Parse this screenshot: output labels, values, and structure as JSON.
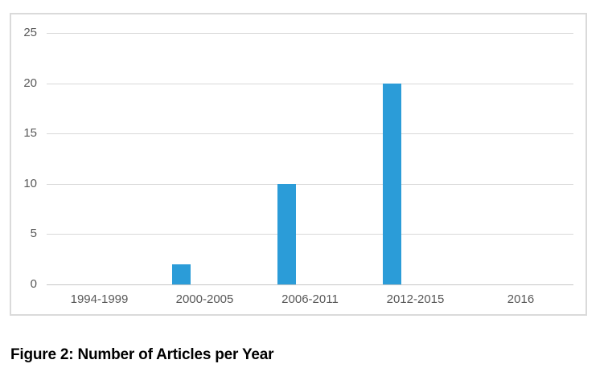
{
  "figure": {
    "caption": "Figure 2: Number of Articles per Year"
  },
  "chart_data": {
    "type": "bar",
    "title": "",
    "xlabel": "",
    "ylabel": "",
    "categories": [
      "1994-1999",
      "2000-2005",
      "2006-2011",
      "2012-2015",
      "2016"
    ],
    "values": [
      0,
      2,
      10,
      20,
      0
    ],
    "ylim": [
      0,
      25
    ],
    "yticks": [
      0,
      5,
      10,
      15,
      20,
      25
    ],
    "grid": true,
    "legend": "none",
    "colors": {
      "bar": "#2B9CD8",
      "gridline": "#D9D9D9",
      "axis_line": "#C6C6C6",
      "tick_label": "#595959",
      "frame_border": "#DADADA",
      "caption_text": "#000000"
    }
  }
}
